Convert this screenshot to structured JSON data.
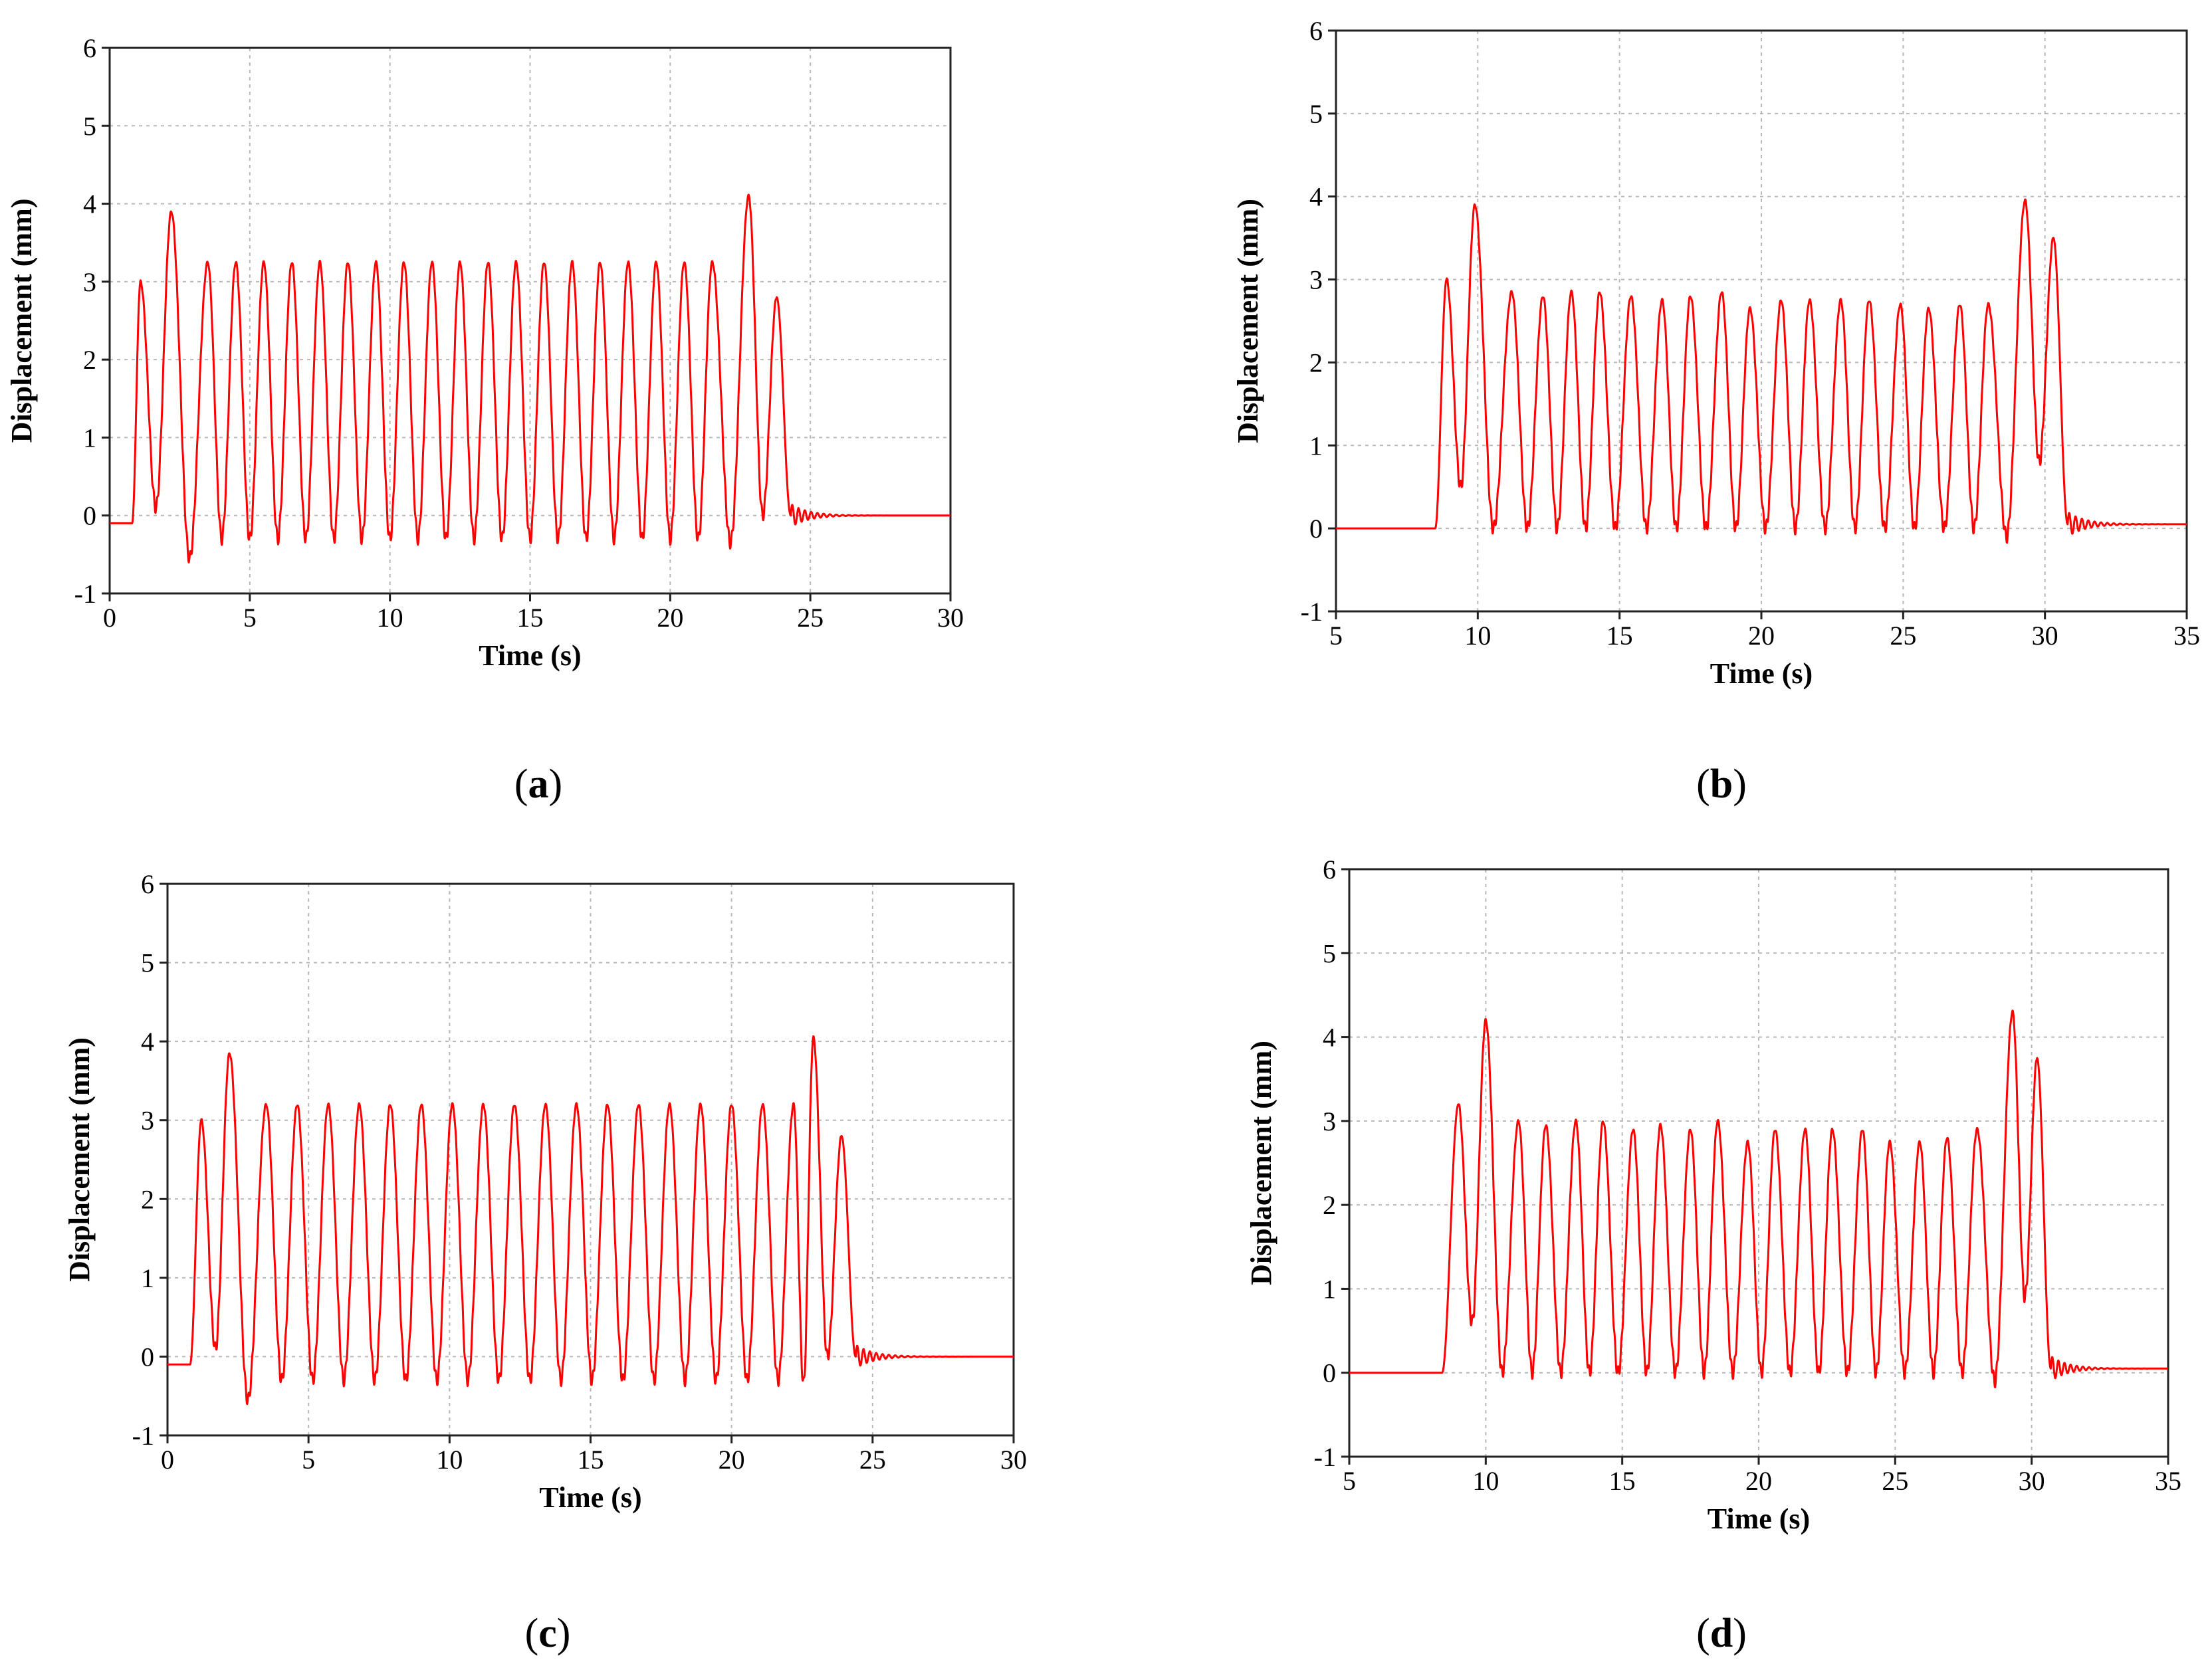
{
  "figure": {
    "panels": [
      {
        "letter": "a",
        "caption_open": "(",
        "caption_close": ")"
      },
      {
        "letter": "b",
        "caption_open": "(",
        "caption_close": ")"
      },
      {
        "letter": "c",
        "caption_open": "(",
        "caption_close": ")"
      },
      {
        "letter": "d",
        "caption_open": "(",
        "caption_close": ")"
      }
    ]
  },
  "colors": {
    "series": "#ff0000",
    "grid": "#b8b8b8",
    "frame": "#222222"
  },
  "chart_data": [
    {
      "type": "line",
      "title": "",
      "xlabel": "Time (s)",
      "ylabel": "Displacement (mm)",
      "xlim": [
        0,
        30
      ],
      "ylim": [
        -1,
        6
      ],
      "xticks": [
        0,
        5,
        10,
        15,
        20,
        25,
        30
      ],
      "yticks": [
        -1,
        0,
        1,
        2,
        3,
        4,
        5,
        6
      ],
      "grid": true,
      "legend": "none",
      "series": [
        {
          "name": "Displacement",
          "signal": {
            "start": 0.8,
            "period": 1.0,
            "peak_times": [
              1.1,
              2.2,
              3.5,
              4.5,
              5.5,
              6.5,
              7.5,
              8.5,
              9.5,
              10.5,
              11.5,
              12.5,
              13.5,
              14.5,
              15.5,
              16.5,
              17.5,
              18.5,
              19.5,
              20.5,
              21.5,
              22.8,
              23.8
            ],
            "peaks": [
              3.0,
              3.9,
              3.25,
              3.25,
              3.25,
              3.25,
              3.25,
              3.25,
              3.25,
              3.25,
              3.25,
              3.25,
              3.25,
              3.25,
              3.25,
              3.25,
              3.25,
              3.25,
              3.25,
              3.25,
              3.25,
              4.1,
              2.8
            ],
            "troughs": [
              0.1,
              -0.55,
              -0.3,
              -0.3,
              -0.3,
              -0.3,
              -0.3,
              -0.3,
              -0.3,
              -0.3,
              -0.3,
              -0.3,
              -0.3,
              -0.3,
              -0.3,
              -0.3,
              -0.3,
              -0.3,
              -0.3,
              -0.3,
              -0.35,
              0.0
            ],
            "pre_level": -0.1,
            "end_time": 24.3,
            "settle_level": 0.0
          }
        }
      ]
    },
    {
      "type": "line",
      "title": "",
      "xlabel": "Time (s)",
      "ylabel": "Displacement (mm)",
      "xlim": [
        5,
        35
      ],
      "ylim": [
        -1,
        6
      ],
      "xticks": [
        5,
        10,
        15,
        20,
        25,
        30,
        35
      ],
      "yticks": [
        -1,
        0,
        1,
        2,
        3,
        4,
        5,
        6
      ],
      "grid": true,
      "legend": "none",
      "series": [
        {
          "name": "Displacement",
          "signal": {
            "start": 8.5,
            "period": 1.05,
            "peak_times": [
              8.9,
              9.9,
              11.2,
              12.3,
              13.3,
              14.3,
              15.4,
              16.5,
              17.5,
              18.6,
              19.6,
              20.7,
              21.7,
              22.8,
              23.8,
              24.9,
              25.9,
              27.0,
              28.0,
              29.3,
              30.3
            ],
            "peaks": [
              3.0,
              3.9,
              2.85,
              2.8,
              2.85,
              2.85,
              2.8,
              2.75,
              2.8,
              2.85,
              2.65,
              2.75,
              2.75,
              2.75,
              2.75,
              2.7,
              2.65,
              2.7,
              2.7,
              3.95,
              3.5
            ],
            "troughs": [
              0.5,
              0.0,
              0.0,
              0.0,
              0.0,
              0.0,
              0.0,
              0.0,
              0.0,
              0.0,
              0.0,
              0.0,
              0.0,
              0.0,
              0.0,
              0.0,
              0.0,
              0.0,
              -0.1,
              0.8
            ],
            "pre_level": 0.0,
            "end_time": 30.8,
            "settle_level": 0.05
          }
        }
      ]
    },
    {
      "type": "line",
      "title": "",
      "xlabel": "Time (s)",
      "ylabel": "Displacement (mm)",
      "xlim": [
        0,
        30
      ],
      "ylim": [
        -1,
        6
      ],
      "xticks": [
        0,
        5,
        10,
        15,
        20,
        25,
        30
      ],
      "yticks": [
        -1,
        0,
        1,
        2,
        3,
        4,
        5,
        6
      ],
      "grid": true,
      "legend": "none",
      "series": [
        {
          "name": "Displacement",
          "signal": {
            "start": 0.8,
            "period": 1.0,
            "peak_times": [
              1.2,
              2.2,
              3.5,
              4.6,
              5.7,
              6.8,
              7.9,
              9.0,
              10.1,
              11.2,
              12.3,
              13.4,
              14.5,
              15.6,
              16.7,
              17.8,
              18.9,
              20.0,
              21.1,
              22.2,
              22.9,
              23.9
            ],
            "peaks": [
              3.0,
              3.85,
              3.2,
              3.2,
              3.2,
              3.2,
              3.2,
              3.2,
              3.2,
              3.2,
              3.2,
              3.2,
              3.2,
              3.2,
              3.2,
              3.2,
              3.2,
              3.2,
              3.2,
              3.2,
              4.05,
              2.8
            ],
            "troughs": [
              0.1,
              -0.55,
              -0.3,
              -0.3,
              -0.3,
              -0.3,
              -0.3,
              -0.3,
              -0.3,
              -0.3,
              -0.3,
              -0.3,
              -0.3,
              -0.3,
              -0.3,
              -0.3,
              -0.3,
              -0.3,
              -0.3,
              -0.35,
              0.0
            ],
            "pre_level": -0.1,
            "end_time": 24.4,
            "settle_level": 0.0
          }
        }
      ]
    },
    {
      "type": "line",
      "title": "",
      "xlabel": "Time (s)",
      "ylabel": "Displacement (mm)",
      "xlim": [
        5,
        35
      ],
      "ylim": [
        -1,
        6
      ],
      "xticks": [
        5,
        10,
        15,
        20,
        25,
        30,
        35
      ],
      "yticks": [
        -1,
        0,
        1,
        2,
        3,
        4,
        5,
        6
      ],
      "grid": true,
      "legend": "none",
      "series": [
        {
          "name": "Displacement",
          "signal": {
            "start": 8.4,
            "period": 1.05,
            "peak_times": [
              9.0,
              10.0,
              11.2,
              12.2,
              13.3,
              14.3,
              15.4,
              16.4,
              17.5,
              18.5,
              19.6,
              20.6,
              21.7,
              22.7,
              23.8,
              24.8,
              25.9,
              26.9,
              28.0,
              29.3,
              30.2
            ],
            "peaks": [
              3.2,
              4.2,
              3.0,
              2.95,
              3.0,
              3.0,
              2.9,
              2.95,
              2.9,
              3.0,
              2.75,
              2.9,
              2.9,
              2.9,
              2.9,
              2.75,
              2.75,
              2.8,
              2.9,
              4.3,
              3.75
            ],
            "troughs": [
              0.6,
              0.0,
              0.0,
              0.0,
              0.0,
              0.0,
              0.0,
              0.0,
              0.0,
              0.0,
              0.0,
              0.0,
              0.0,
              0.0,
              0.0,
              0.0,
              0.0,
              0.0,
              -0.1,
              0.9
            ],
            "pre_level": 0.0,
            "end_time": 30.7,
            "settle_level": 0.05
          }
        }
      ]
    }
  ]
}
